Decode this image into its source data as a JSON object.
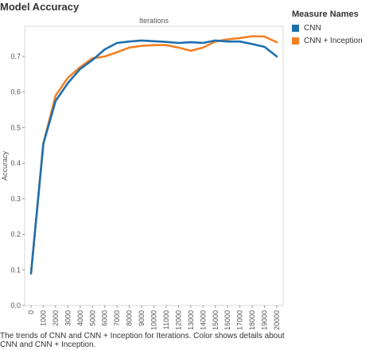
{
  "title": "Model Accuracy",
  "legend": {
    "title": "Measure Names",
    "items": [
      {
        "label": "CNN",
        "color": "#1f6fad"
      },
      {
        "label": "CNN + Inception",
        "color": "#f28024"
      }
    ]
  },
  "caption": "The trends of CNN and CNN + Inception for Iterations.  Color shows details about CNN and CNN + Inception.",
  "chart_data": {
    "type": "line",
    "title": "",
    "xlabel": "Iterations",
    "ylabel": "Accuracy",
    "x": [
      0,
      1000,
      2000,
      3000,
      4000,
      5000,
      6000,
      7000,
      8000,
      9000,
      10000,
      11000,
      12000,
      13000,
      14000,
      15000,
      16000,
      17000,
      18000,
      19000,
      20000
    ],
    "x_tick_labels": [
      "0",
      "1000",
      "2000",
      "3000",
      "4000",
      "5000",
      "6000",
      "7000",
      "8000",
      "9000",
      "10000",
      "11000",
      "12000",
      "13000",
      "14000",
      "15000",
      "16000",
      "17000",
      "18000",
      "19000",
      "20000"
    ],
    "y_ticks": [
      0.0,
      0.1,
      0.2,
      0.3,
      0.4,
      0.5,
      0.6,
      0.7
    ],
    "y_tick_labels": [
      "0.0",
      "0.1",
      "0.2",
      "0.3",
      "0.4",
      "0.5",
      "0.6",
      "0.7"
    ],
    "ylim": [
      0,
      0.785
    ],
    "grid": false,
    "series": [
      {
        "name": "CNN",
        "color": "#1f6fad",
        "values": [
          0.09,
          0.455,
          0.575,
          0.625,
          0.665,
          0.69,
          0.72,
          0.738,
          0.742,
          0.745,
          0.743,
          0.741,
          0.738,
          0.74,
          0.738,
          0.745,
          0.742,
          0.742,
          0.735,
          0.727,
          0.7
        ]
      },
      {
        "name": "CNN + Inception",
        "color": "#f28024",
        "values": [
          0.09,
          0.455,
          0.59,
          0.64,
          0.67,
          0.695,
          0.7,
          0.712,
          0.725,
          0.73,
          0.732,
          0.732,
          0.725,
          0.716,
          0.725,
          0.742,
          0.748,
          0.752,
          0.757,
          0.756,
          0.74
        ]
      }
    ]
  }
}
